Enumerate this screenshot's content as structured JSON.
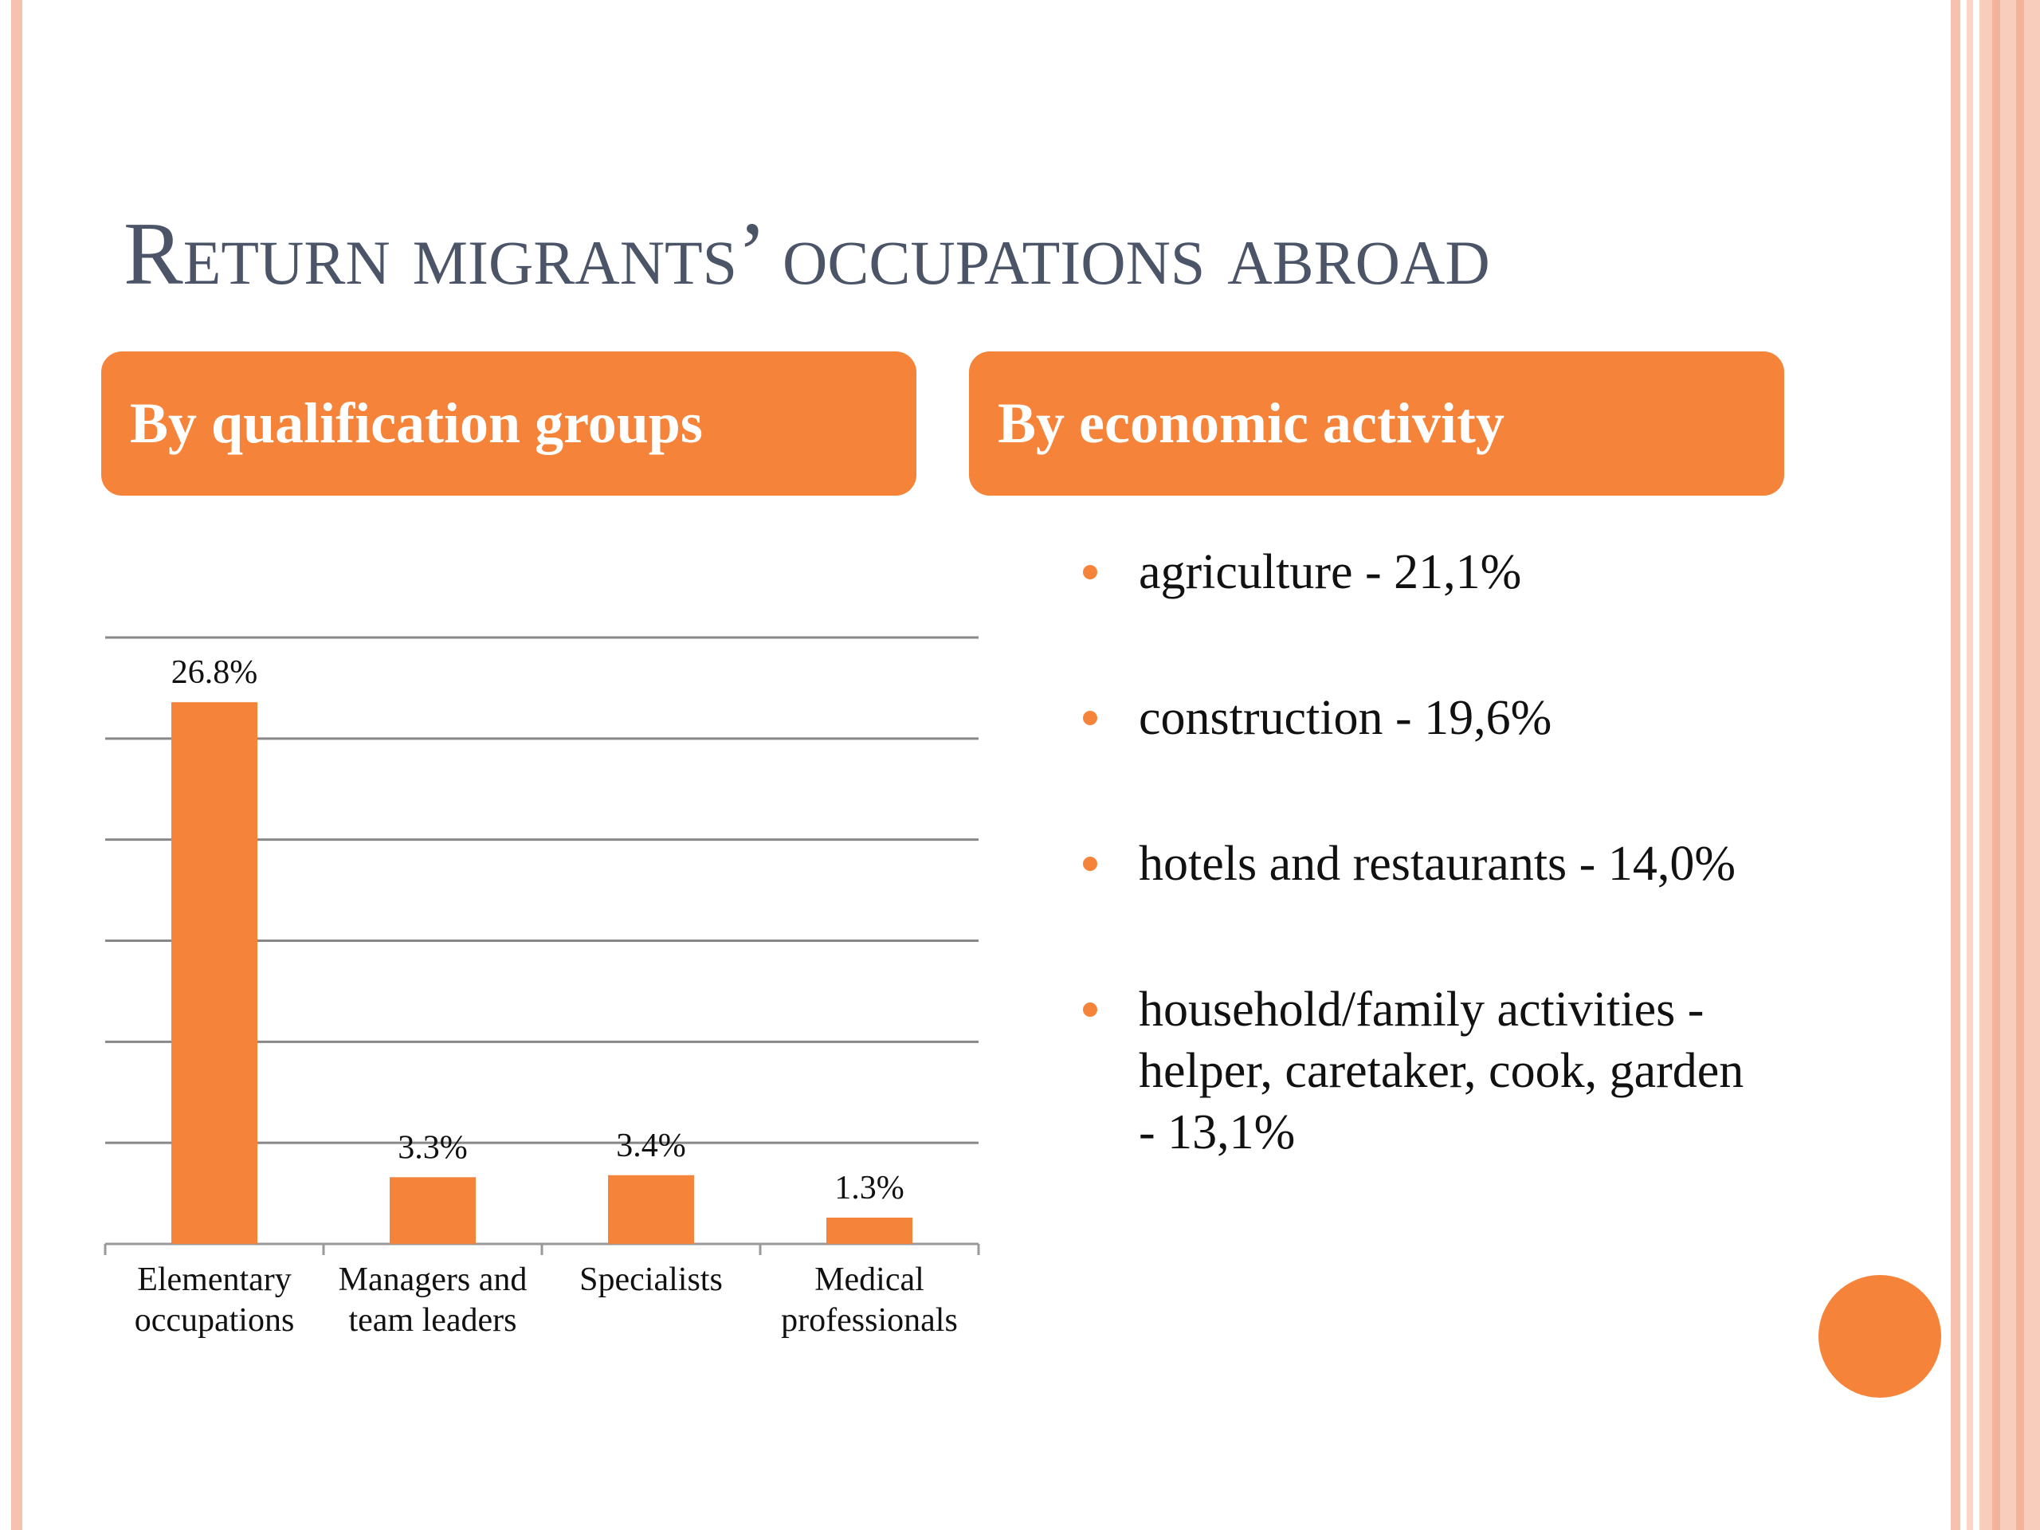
{
  "title": "Return migrants’ occupations abroad",
  "panels": [
    {
      "header": "By qualification groups"
    },
    {
      "header": "By economic activity"
    }
  ],
  "bullets": [
    "agriculture - 21,1%",
    "construction  - 19,6%",
    "hotels and restaurants - 14,0%",
    "household/family activities - helper, caretaker, cook, garden - 13,1%"
  ],
  "chart_data": {
    "type": "bar",
    "categories": [
      "Elementary occupations",
      "Managers and team leaders",
      "Specialists",
      "Medical professionals"
    ],
    "values": [
      26.8,
      3.3,
      3.4,
      1.3
    ],
    "value_labels": [
      "26.8%",
      "3.3%",
      "3.4%",
      "1.3%"
    ],
    "color": "#f5843a",
    "ylim": [
      0,
      30
    ],
    "yticks": [
      0,
      5,
      10,
      15,
      20,
      25,
      30
    ],
    "grid": true
  }
}
